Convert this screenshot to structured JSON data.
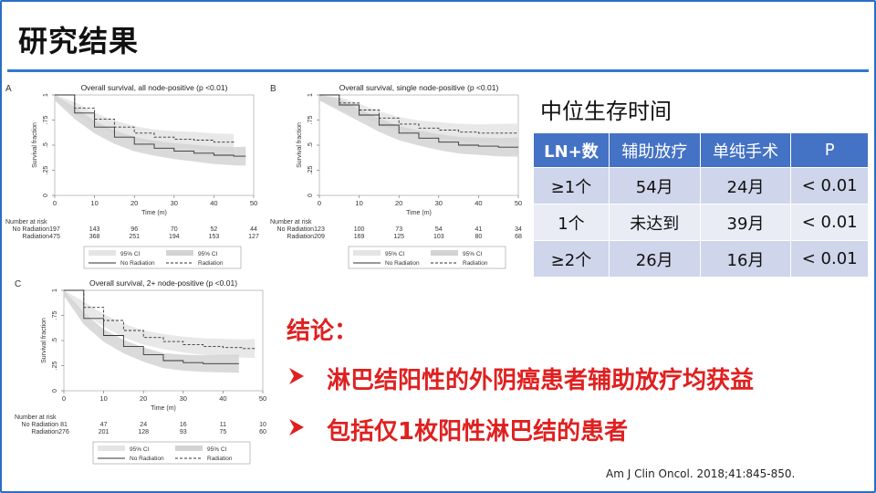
{
  "slide": {
    "title": "研究结果",
    "table_title": "中位生存时间",
    "table": {
      "headers": [
        "LN+数",
        "辅助放疗",
        "单纯手术",
        "P"
      ],
      "rows": [
        [
          "≥1个",
          "54月",
          "24月",
          "< 0.01"
        ],
        [
          "1个",
          "未达到",
          "39月",
          "< 0.01"
        ],
        [
          "≥2个",
          "26月",
          "16月",
          "< 0.01"
        ]
      ]
    },
    "conclusion_heading": "结论：",
    "bullets": [
      "淋巴结阳性的外阴癌患者辅助放疗均获益",
      "包括仅1枚阳性淋巴结的患者"
    ],
    "bullet_icon": "arrow-bullet-icon",
    "citation": "Am J Clin Oncol. 2018;41:845-850.",
    "colors": {
      "accent": "#2e78d0",
      "table_header": "#4472c4",
      "conclusion": "#e02020"
    }
  },
  "chart_data": [
    {
      "type": "line",
      "panel": "A",
      "title": "Overall survival, all node-positive (p <0.01)",
      "ylabel": "Survival fraction",
      "xlabel": "Time (m)",
      "x_ticks": [
        "0",
        "10",
        "20",
        "30",
        "40",
        "50"
      ],
      "y_ticks": [
        "0",
        ".25",
        ".5",
        ".75",
        "1"
      ],
      "xlim": [
        0,
        50
      ],
      "ylim": [
        0,
        1
      ],
      "series": [
        {
          "name": "Radiation",
          "x": [
            0,
            5,
            10,
            15,
            20,
            25,
            30,
            35,
            40,
            45
          ],
          "y": [
            1,
            0.87,
            0.76,
            0.68,
            0.62,
            0.58,
            0.56,
            0.55,
            0.53,
            0.52
          ]
        },
        {
          "name": "No Radiation",
          "x": [
            0,
            5,
            10,
            15,
            20,
            25,
            30,
            35,
            40,
            45,
            48
          ],
          "y": [
            1,
            0.82,
            0.68,
            0.58,
            0.51,
            0.47,
            0.44,
            0.42,
            0.4,
            0.39,
            0.39
          ]
        }
      ],
      "risk_table": {
        "heading": "Number at risk",
        "rows": [
          {
            "label": "No Radiation",
            "values": [
              "197",
              "143",
              "96",
              "70",
              "52",
              "44"
            ]
          },
          {
            "label": "Radiation",
            "values": [
              "475",
              "368",
              "251",
              "194",
              "153",
              "127"
            ]
          }
        ]
      },
      "legend": [
        "95% CI",
        "95% CI",
        "No Radiation",
        "Radiation"
      ]
    },
    {
      "type": "line",
      "panel": "B",
      "title": "Overall survival, single node-positive (p <0.01)",
      "ylabel": "Survival fraction",
      "xlabel": "Time (m)",
      "x_ticks": [
        "0",
        "10",
        "20",
        "30",
        "40",
        "50"
      ],
      "y_ticks": [
        "0",
        ".25",
        ".5",
        ".75",
        "1"
      ],
      "xlim": [
        0,
        50
      ],
      "ylim": [
        0,
        1
      ],
      "series": [
        {
          "name": "Radiation",
          "x": [
            0,
            5,
            10,
            15,
            20,
            25,
            30,
            35,
            40,
            45,
            50
          ],
          "y": [
            1,
            0.92,
            0.85,
            0.77,
            0.71,
            0.67,
            0.65,
            0.63,
            0.62,
            0.62,
            0.62
          ]
        },
        {
          "name": "No Radiation",
          "x": [
            0,
            5,
            10,
            15,
            20,
            25,
            30,
            35,
            40,
            45,
            50
          ],
          "y": [
            1,
            0.9,
            0.8,
            0.7,
            0.62,
            0.57,
            0.53,
            0.5,
            0.49,
            0.48,
            0.48
          ]
        }
      ],
      "risk_table": {
        "heading": "Number at risk",
        "rows": [
          {
            "label": "No Radiation",
            "values": [
              "123",
              "100",
              "73",
              "54",
              "41",
              "34"
            ]
          },
          {
            "label": "Radiation",
            "values": [
              "209",
              "169",
              "125",
              "103",
              "80",
              "68"
            ]
          }
        ]
      },
      "legend": [
        "95% CI",
        "95% CI",
        "No Radiation",
        "Radiation"
      ]
    },
    {
      "type": "line",
      "panel": "C",
      "title": "Overall survival, 2+ node-positive (p <0.01)",
      "ylabel": "Survival fraction",
      "xlabel": "Time (m)",
      "x_ticks": [
        "0",
        "10",
        "20",
        "30",
        "40",
        "50"
      ],
      "y_ticks": [
        "0",
        ".25",
        ".5",
        ".75",
        "1"
      ],
      "xlim": [
        0,
        50
      ],
      "ylim": [
        0,
        1
      ],
      "series": [
        {
          "name": "Radiation",
          "x": [
            0,
            5,
            10,
            15,
            20,
            25,
            30,
            35,
            40,
            45,
            48
          ],
          "y": [
            1,
            0.83,
            0.7,
            0.6,
            0.53,
            0.49,
            0.46,
            0.44,
            0.43,
            0.42,
            0.42
          ]
        },
        {
          "name": "No Radiation",
          "x": [
            0,
            5,
            10,
            15,
            20,
            25,
            30,
            35,
            40,
            44
          ],
          "y": [
            1,
            0.72,
            0.55,
            0.44,
            0.36,
            0.3,
            0.28,
            0.27,
            0.27,
            0.27
          ]
        }
      ],
      "risk_table": {
        "heading": "Number at risk",
        "rows": [
          {
            "label": "No Radiation",
            "values": [
              "81",
              "47",
              "24",
              "16",
              "11",
              "10"
            ]
          },
          {
            "label": "Radiation",
            "values": [
              "276",
              "201",
              "128",
              "93",
              "75",
              "60"
            ]
          }
        ]
      },
      "legend": [
        "95% CI",
        "95% CI",
        "No Radiation",
        "Radiation"
      ]
    }
  ]
}
